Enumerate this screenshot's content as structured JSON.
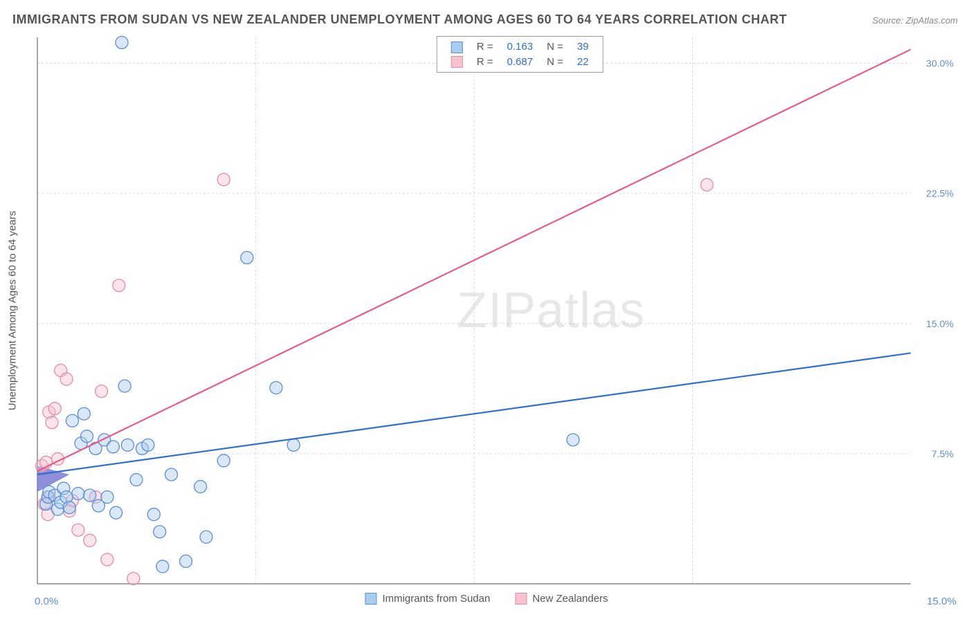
{
  "title": "IMMIGRANTS FROM SUDAN VS NEW ZEALANDER UNEMPLOYMENT AMONG AGES 60 TO 64 YEARS CORRELATION CHART",
  "source": "Source: ZipAtlas.com",
  "y_axis_label": "Unemployment Among Ages 60 to 64 years",
  "watermark": "ZIPatlas",
  "chart": {
    "type": "scatter",
    "background_color": "#ffffff",
    "grid_color": "#d9d9d9",
    "axis_color": "#888888",
    "xlim": [
      0,
      15
    ],
    "ylim": [
      0,
      31.5
    ],
    "x_tick_labels": [
      "0.0%",
      "15.0%"
    ],
    "y_tick_positions": [
      7.5,
      15.0,
      22.5,
      30.0
    ],
    "y_tick_labels": [
      "7.5%",
      "15.0%",
      "22.5%",
      "30.0%"
    ],
    "x_grid_positions": [
      3.75,
      7.5,
      11.25
    ],
    "tick_label_color": "#5b8dd6",
    "tick_label_fontsize": 14,
    "marker_radius": 9,
    "marker_opacity": 0.45,
    "line_width": 2.2,
    "series": [
      {
        "name": "Immigrants from Sudan",
        "color_fill": "#a9cdef",
        "color_stroke": "#5b8dd6",
        "line_color": "#2f6fcf",
        "R": "0.163",
        "N": "39",
        "trend": {
          "x1": 0,
          "y1": 6.3,
          "x2": 15,
          "y2": 13.3
        },
        "points": [
          [
            0.15,
            4.6
          ],
          [
            0.18,
            5.0
          ],
          [
            0.2,
            5.3
          ],
          [
            0.3,
            5.1
          ],
          [
            0.35,
            4.3
          ],
          [
            0.4,
            4.7
          ],
          [
            0.45,
            5.5
          ],
          [
            0.5,
            5.0
          ],
          [
            0.55,
            4.4
          ],
          [
            0.6,
            9.4
          ],
          [
            0.7,
            5.2
          ],
          [
            0.75,
            8.1
          ],
          [
            0.8,
            9.8
          ],
          [
            0.85,
            8.5
          ],
          [
            0.9,
            5.1
          ],
          [
            1.0,
            7.8
          ],
          [
            1.05,
            4.5
          ],
          [
            1.15,
            8.3
          ],
          [
            1.2,
            5.0
          ],
          [
            1.3,
            7.9
          ],
          [
            1.35,
            4.1
          ],
          [
            1.45,
            31.2
          ],
          [
            1.5,
            11.4
          ],
          [
            1.55,
            8.0
          ],
          [
            1.7,
            6.0
          ],
          [
            1.8,
            7.8
          ],
          [
            1.9,
            8.0
          ],
          [
            2.0,
            4.0
          ],
          [
            2.1,
            3.0
          ],
          [
            2.15,
            1.0
          ],
          [
            2.3,
            6.3
          ],
          [
            2.55,
            1.3
          ],
          [
            2.8,
            5.6
          ],
          [
            2.9,
            2.7
          ],
          [
            3.2,
            7.1
          ],
          [
            3.6,
            18.8
          ],
          [
            4.1,
            11.3
          ],
          [
            4.4,
            8.0
          ],
          [
            9.2,
            8.3
          ]
        ]
      },
      {
        "name": "New Zealanders",
        "color_fill": "#f6c3d1",
        "color_stroke": "#e68aa6",
        "line_color": "#e75a8a",
        "R": "0.687",
        "N": "22",
        "trend": {
          "x1": 0,
          "y1": 6.5,
          "x2": 15,
          "y2": 30.8
        },
        "points": [
          [
            0.08,
            6.8
          ],
          [
            0.12,
            4.6
          ],
          [
            0.15,
            7.0
          ],
          [
            0.18,
            4.0
          ],
          [
            0.2,
            5.0
          ],
          [
            0.2,
            9.9
          ],
          [
            0.25,
            9.3
          ],
          [
            0.3,
            10.1
          ],
          [
            0.35,
            7.2
          ],
          [
            0.4,
            12.3
          ],
          [
            0.5,
            11.8
          ],
          [
            0.55,
            4.2
          ],
          [
            0.6,
            4.8
          ],
          [
            0.7,
            3.1
          ],
          [
            0.9,
            2.5
          ],
          [
            1.0,
            5.0
          ],
          [
            1.1,
            11.1
          ],
          [
            1.2,
            1.4
          ],
          [
            1.4,
            17.2
          ],
          [
            1.65,
            0.3
          ],
          [
            3.2,
            23.3
          ],
          [
            11.5,
            23.0
          ]
        ]
      }
    ]
  },
  "slateblue": "#7a7ad4"
}
